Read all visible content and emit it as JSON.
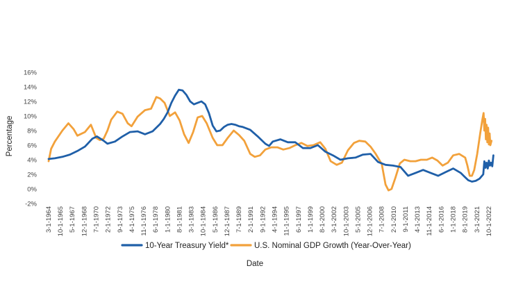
{
  "chart_data": {
    "type": "line",
    "title": "",
    "xlabel": "Date",
    "ylabel": "Percentage",
    "ylim": [
      -2,
      16
    ],
    "xlim": [
      1964.17,
      2023.5
    ],
    "grid": false,
    "legend_position": "bottom",
    "y_ticks": [
      {
        "value": -2,
        "label": "-2%"
      },
      {
        "value": 0,
        "label": "0%"
      },
      {
        "value": 2,
        "label": "2%"
      },
      {
        "value": 4,
        "label": "4%"
      },
      {
        "value": 6,
        "label": "6%"
      },
      {
        "value": 8,
        "label": "8%"
      },
      {
        "value": 10,
        "label": "10%"
      },
      {
        "value": 12,
        "label": "12%"
      },
      {
        "value": 14,
        "label": "14%"
      },
      {
        "value": 16,
        "label": "16%"
      }
    ],
    "x_ticks": [
      {
        "value": 1964.17,
        "label": "3-1-1964"
      },
      {
        "value": 1965.75,
        "label": "10-1-1965"
      },
      {
        "value": 1967.33,
        "label": "5-1-1967"
      },
      {
        "value": 1968.92,
        "label": "12-1-1968"
      },
      {
        "value": 1970.5,
        "label": "7-1-1970"
      },
      {
        "value": 1972.08,
        "label": "2-1-1972"
      },
      {
        "value": 1973.67,
        "label": "9-1-1973"
      },
      {
        "value": 1975.25,
        "label": "4-1-1975"
      },
      {
        "value": 1976.83,
        "label": "11-1-1976"
      },
      {
        "value": 1978.42,
        "label": "6-1-1978"
      },
      {
        "value": 1980.0,
        "label": "1-1-1980"
      },
      {
        "value": 1981.58,
        "label": "8-1-1981"
      },
      {
        "value": 1983.17,
        "label": "3-1-1983"
      },
      {
        "value": 1984.75,
        "label": "10-1-1984"
      },
      {
        "value": 1986.33,
        "label": "5-1-1986"
      },
      {
        "value": 1987.92,
        "label": "12-1-1987"
      },
      {
        "value": 1989.5,
        "label": "7-1-1989"
      },
      {
        "value": 1991.08,
        "label": "2-1-1991"
      },
      {
        "value": 1992.67,
        "label": "9-1-1992"
      },
      {
        "value": 1994.25,
        "label": "4-1-1994"
      },
      {
        "value": 1995.83,
        "label": "11-1-1995"
      },
      {
        "value": 1997.42,
        "label": "6-1-1997"
      },
      {
        "value": 1999.0,
        "label": "1-1-1999"
      },
      {
        "value": 2000.58,
        "label": "8-1-2000"
      },
      {
        "value": 2002.17,
        "label": "3-1-2002"
      },
      {
        "value": 2003.75,
        "label": "10-1-2003"
      },
      {
        "value": 2005.33,
        "label": "5-1-2005"
      },
      {
        "value": 2006.92,
        "label": "12-1-2006"
      },
      {
        "value": 2008.5,
        "label": "7-1-2008"
      },
      {
        "value": 2010.08,
        "label": "2-1-2010"
      },
      {
        "value": 2011.67,
        "label": "9-1-2011"
      },
      {
        "value": 2013.25,
        "label": "4-1-2013"
      },
      {
        "value": 2014.83,
        "label": "11-1-2014"
      },
      {
        "value": 2016.42,
        "label": "6-1-2016"
      },
      {
        "value": 2018.0,
        "label": "1-1-2018"
      },
      {
        "value": 2019.58,
        "label": "8-1-2019"
      },
      {
        "value": 2021.17,
        "label": "3-1-2021"
      },
      {
        "value": 2022.75,
        "label": "10-1-2022"
      }
    ],
    "series": [
      {
        "name": "10-Year Treasury Yield",
        "legend_label": "10-Year Treasury Yield*",
        "color": "#1f5fa8",
        "points": [
          [
            1964.17,
            4.1
          ],
          [
            1965.0,
            4.2
          ],
          [
            1966.0,
            4.4
          ],
          [
            1967.0,
            4.7
          ],
          [
            1968.0,
            5.2
          ],
          [
            1969.0,
            5.8
          ],
          [
            1970.0,
            6.9
          ],
          [
            1970.6,
            7.2
          ],
          [
            1971.5,
            6.6
          ],
          [
            1972.0,
            6.2
          ],
          [
            1973.0,
            6.5
          ],
          [
            1974.0,
            7.2
          ],
          [
            1975.0,
            7.8
          ],
          [
            1976.0,
            7.9
          ],
          [
            1977.0,
            7.5
          ],
          [
            1978.0,
            7.9
          ],
          [
            1979.0,
            8.9
          ],
          [
            1979.5,
            9.6
          ],
          [
            1980.0,
            10.5
          ],
          [
            1980.5,
            11.8
          ],
          [
            1981.0,
            12.8
          ],
          [
            1981.5,
            13.6
          ],
          [
            1982.0,
            13.5
          ],
          [
            1982.5,
            12.9
          ],
          [
            1983.0,
            12.0
          ],
          [
            1983.5,
            11.6
          ],
          [
            1984.0,
            11.8
          ],
          [
            1984.5,
            12.0
          ],
          [
            1985.0,
            11.6
          ],
          [
            1985.5,
            10.4
          ],
          [
            1986.0,
            8.7
          ],
          [
            1986.5,
            7.9
          ],
          [
            1987.0,
            8.0
          ],
          [
            1987.5,
            8.5
          ],
          [
            1988.0,
            8.8
          ],
          [
            1988.5,
            8.9
          ],
          [
            1989.0,
            8.8
          ],
          [
            1989.5,
            8.6
          ],
          [
            1990.0,
            8.5
          ],
          [
            1991.0,
            8.1
          ],
          [
            1992.0,
            7.2
          ],
          [
            1993.0,
            6.2
          ],
          [
            1993.5,
            5.9
          ],
          [
            1994.0,
            6.5
          ],
          [
            1995.0,
            6.8
          ],
          [
            1996.0,
            6.4
          ],
          [
            1997.0,
            6.4
          ],
          [
            1998.0,
            5.6
          ],
          [
            1999.0,
            5.6
          ],
          [
            2000.0,
            6.0
          ],
          [
            2001.0,
            5.1
          ],
          [
            2002.0,
            4.6
          ],
          [
            2003.0,
            4.0
          ],
          [
            2004.0,
            4.2
          ],
          [
            2005.0,
            4.3
          ],
          [
            2006.0,
            4.7
          ],
          [
            2007.0,
            4.8
          ],
          [
            2008.0,
            3.7
          ],
          [
            2009.0,
            3.3
          ],
          [
            2010.0,
            3.2
          ],
          [
            2011.0,
            3.0
          ],
          [
            2012.0,
            1.8
          ],
          [
            2013.0,
            2.2
          ],
          [
            2014.0,
            2.6
          ],
          [
            2015.0,
            2.2
          ],
          [
            2016.0,
            1.8
          ],
          [
            2017.0,
            2.3
          ],
          [
            2018.0,
            2.8
          ],
          [
            2019.0,
            2.2
          ],
          [
            2019.5,
            1.7
          ],
          [
            2020.0,
            1.2
          ],
          [
            2020.5,
            1.0
          ],
          [
            2021.0,
            1.1
          ],
          [
            2021.5,
            1.4
          ],
          [
            2022.0,
            2.0
          ],
          [
            2022.15,
            3.8
          ],
          [
            2022.3,
            2.9
          ],
          [
            2022.45,
            3.6
          ],
          [
            2022.6,
            2.8
          ],
          [
            2022.75,
            3.9
          ],
          [
            2022.9,
            3.2
          ],
          [
            2023.05,
            3.6
          ],
          [
            2023.2,
            3.1
          ],
          [
            2023.35,
            4.6
          ]
        ]
      },
      {
        "name": "U.S. Nominal GDP Growth (Year-Over-Year)",
        "legend_label": "U.S. Nominal GDP Growth (Year-Over-Year)",
        "color": "#f2a13b",
        "points": [
          [
            1964.17,
            3.8
          ],
          [
            1964.5,
            5.5
          ],
          [
            1965.0,
            6.5
          ],
          [
            1966.0,
            8.0
          ],
          [
            1966.8,
            9.0
          ],
          [
            1967.5,
            8.2
          ],
          [
            1968.0,
            7.3
          ],
          [
            1969.0,
            7.8
          ],
          [
            1969.8,
            8.8
          ],
          [
            1970.5,
            7.0
          ],
          [
            1971.0,
            6.7
          ],
          [
            1971.5,
            6.9
          ],
          [
            1972.0,
            8.0
          ],
          [
            1972.5,
            9.5
          ],
          [
            1973.3,
            10.6
          ],
          [
            1974.0,
            10.3
          ],
          [
            1974.7,
            9.0
          ],
          [
            1975.2,
            8.6
          ],
          [
            1976.0,
            9.9
          ],
          [
            1977.0,
            10.8
          ],
          [
            1977.8,
            11.0
          ],
          [
            1978.5,
            12.6
          ],
          [
            1979.0,
            12.4
          ],
          [
            1979.6,
            11.8
          ],
          [
            1980.3,
            10.0
          ],
          [
            1981.0,
            10.5
          ],
          [
            1981.6,
            9.4
          ],
          [
            1982.2,
            7.5
          ],
          [
            1982.8,
            6.3
          ],
          [
            1983.4,
            7.8
          ],
          [
            1984.0,
            9.8
          ],
          [
            1984.6,
            10.0
          ],
          [
            1985.2,
            9.0
          ],
          [
            1986.0,
            7.0
          ],
          [
            1986.6,
            6.0
          ],
          [
            1987.3,
            6.0
          ],
          [
            1988.0,
            7.0
          ],
          [
            1988.8,
            8.0
          ],
          [
            1989.5,
            7.4
          ],
          [
            1990.2,
            6.6
          ],
          [
            1991.0,
            4.8
          ],
          [
            1991.6,
            4.4
          ],
          [
            1992.3,
            4.6
          ],
          [
            1993.0,
            5.4
          ],
          [
            1993.8,
            5.7
          ],
          [
            1994.6,
            5.7
          ],
          [
            1995.4,
            5.4
          ],
          [
            1996.2,
            5.6
          ],
          [
            1997.0,
            6.0
          ],
          [
            1997.8,
            6.3
          ],
          [
            1998.6,
            5.9
          ],
          [
            1999.4,
            6.0
          ],
          [
            2000.3,
            6.4
          ],
          [
            2001.0,
            5.5
          ],
          [
            2001.7,
            3.8
          ],
          [
            2002.5,
            3.3
          ],
          [
            2003.2,
            3.6
          ],
          [
            2004.0,
            5.3
          ],
          [
            2004.8,
            6.3
          ],
          [
            2005.5,
            6.6
          ],
          [
            2006.3,
            6.5
          ],
          [
            2007.0,
            5.8
          ],
          [
            2007.7,
            4.8
          ],
          [
            2008.5,
            3.4
          ],
          [
            2009.0,
            0.6
          ],
          [
            2009.4,
            -0.2
          ],
          [
            2009.8,
            0.0
          ],
          [
            2010.3,
            1.5
          ],
          [
            2010.9,
            3.5
          ],
          [
            2011.5,
            4.0
          ],
          [
            2012.3,
            3.8
          ],
          [
            2013.0,
            3.8
          ],
          [
            2013.7,
            4.0
          ],
          [
            2014.5,
            4.0
          ],
          [
            2015.2,
            4.3
          ],
          [
            2015.9,
            3.9
          ],
          [
            2016.6,
            3.2
          ],
          [
            2017.3,
            3.6
          ],
          [
            2018.0,
            4.6
          ],
          [
            2018.8,
            4.8
          ],
          [
            2019.6,
            4.3
          ],
          [
            2019.9,
            3.2
          ],
          [
            2020.2,
            1.8
          ],
          [
            2020.5,
            1.8
          ],
          [
            2020.8,
            2.6
          ],
          [
            2021.2,
            4.8
          ],
          [
            2021.6,
            7.6
          ],
          [
            2021.9,
            9.6
          ],
          [
            2022.05,
            10.4
          ],
          [
            2022.15,
            8.0
          ],
          [
            2022.25,
            9.6
          ],
          [
            2022.35,
            6.8
          ],
          [
            2022.45,
            8.8
          ],
          [
            2022.55,
            6.4
          ],
          [
            2022.65,
            8.4
          ],
          [
            2022.75,
            6.1
          ],
          [
            2022.85,
            7.6
          ],
          [
            2022.95,
            6.0
          ],
          [
            2023.1,
            6.6
          ]
        ]
      }
    ]
  }
}
